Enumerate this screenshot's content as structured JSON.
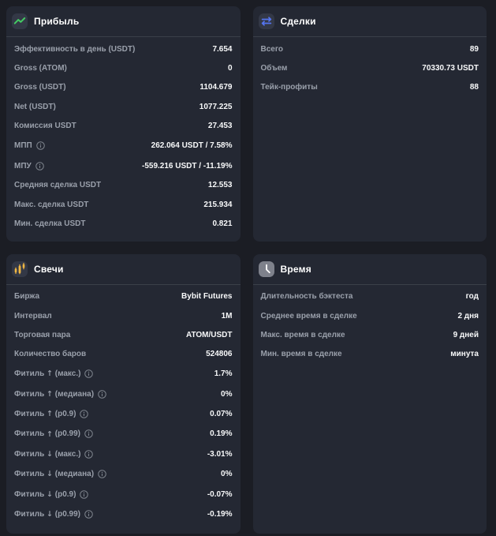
{
  "theme": {
    "page_bg": "#1b1d24",
    "card_bg": "#242833",
    "icon_badge_bg": "#333846",
    "divider": "#3b4049",
    "label_color": "#9aa0ab",
    "value_color": "#f8f9fa",
    "accent_green": "#44cb63",
    "accent_blue": "#5474ee",
    "accent_amber": "#efb643",
    "accent_gray": "#7e818b"
  },
  "cards": [
    {
      "title": "Прибыль",
      "icon": "trend-up-icon",
      "rows": [
        {
          "label": "Эффективность в день (USDT)",
          "value": "7.654"
        },
        {
          "label": "Gross (ATOM)",
          "value": "0"
        },
        {
          "label": "Gross (USDT)",
          "value": "1104.679"
        },
        {
          "label": "Net (USDT)",
          "value": "1077.225"
        },
        {
          "label": "Комиссия USDT",
          "value": "27.453"
        },
        {
          "label": "МПП",
          "info": true,
          "value": "262.064 USDT / 7.58%"
        },
        {
          "label": "МПУ",
          "info": true,
          "value": "-559.216 USDT / -11.19%"
        },
        {
          "label": "Средняя сделка USDT",
          "value": "12.553"
        },
        {
          "label": "Макс. сделка USDT",
          "value": "215.934"
        },
        {
          "label": "Мин. сделка USDT",
          "value": "0.821"
        }
      ]
    },
    {
      "title": "Сделки",
      "icon": "swap-icon",
      "rows": [
        {
          "label": "Всего",
          "value": "89"
        },
        {
          "label": "Объем",
          "value": "70330.73 USDT"
        },
        {
          "label": "Тейк-профиты",
          "value": "88"
        }
      ]
    },
    {
      "title": "Свечи",
      "icon": "candles-icon",
      "rows": [
        {
          "label": "Биржа",
          "value": "Bybit Futures"
        },
        {
          "label": "Интервал",
          "value": "1M"
        },
        {
          "label": "Торговая пара",
          "value": "ATOM/USDT"
        },
        {
          "label": "Количество баров",
          "value": "524806"
        },
        {
          "label": "Фитиль ↑ (макс.)",
          "info": true,
          "value": "1.7%"
        },
        {
          "label": "Фитиль ↑ (медиана)",
          "info": true,
          "value": "0%"
        },
        {
          "label": "Фитиль ↑ (p0.9)",
          "info": true,
          "value": "0.07%"
        },
        {
          "label": "Фитиль ↑ (p0.99)",
          "info": true,
          "value": "0.19%"
        },
        {
          "label": "Фитиль ↓ (макс.)",
          "info": true,
          "value": "-3.01%"
        },
        {
          "label": "Фитиль ↓ (медиана)",
          "info": true,
          "value": "0%"
        },
        {
          "label": "Фитиль ↓ (p0.9)",
          "info": true,
          "value": "-0.07%"
        },
        {
          "label": "Фитиль ↓ (p0.99)",
          "info": true,
          "value": "-0.19%"
        }
      ]
    },
    {
      "title": "Время",
      "icon": "clock-icon",
      "rows": [
        {
          "label": "Длительность бэктеста",
          "value": "год"
        },
        {
          "label": "Среднее время в сделке",
          "value": "2 дня"
        },
        {
          "label": "Макс. время в сделке",
          "value": "9 дней"
        },
        {
          "label": "Мин. время в сделке",
          "value": "минута"
        }
      ]
    }
  ]
}
